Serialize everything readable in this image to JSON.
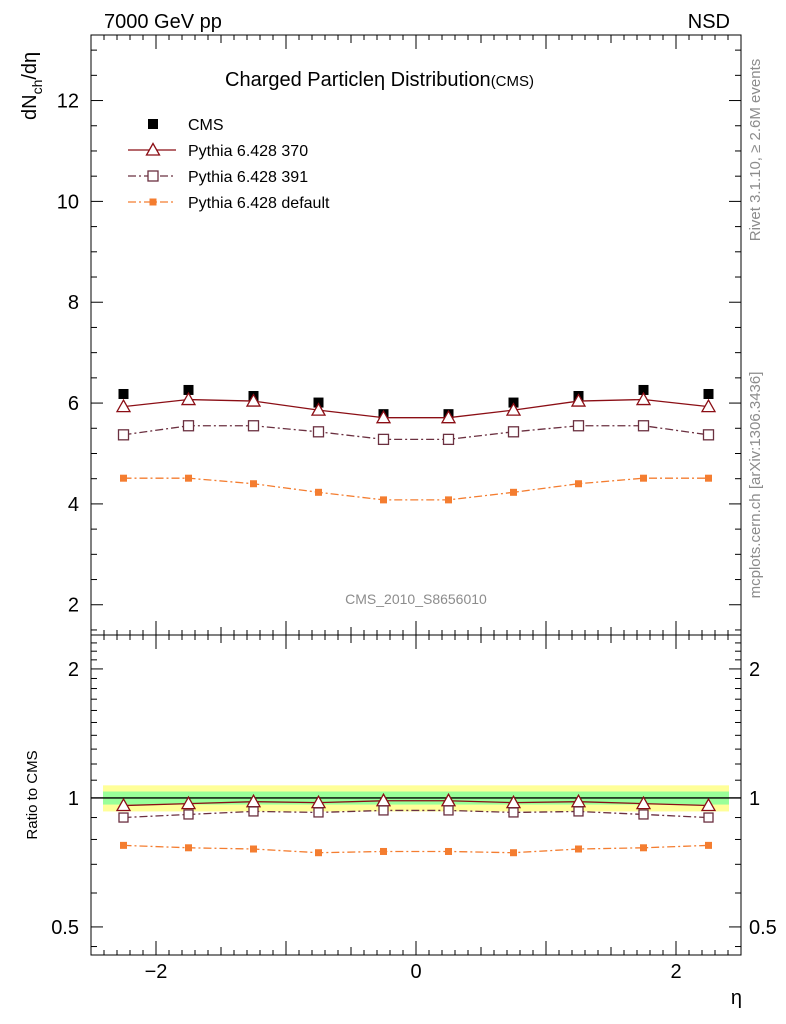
{
  "header": {
    "left": "7000 GeV pp",
    "right": "NSD"
  },
  "side": {
    "rivet": "Rivet 3.1.10, ≥ 2.6M events",
    "mcplots": "mcplots.cern.ch [arXiv:1306.3436]"
  },
  "chart_data": [
    {
      "type": "line",
      "title_main": "Charged Particleη Distribution",
      "title_sub": "(CMS)",
      "ylabel_main": "dN",
      "ylabel_sub": "ch",
      "ylabel_tail": "/dη",
      "analysis_tag": "CMS_2010_S8656010",
      "xlim": [
        -2.5,
        2.5
      ],
      "ylim": [
        1.4,
        13.3
      ],
      "y_ticks": [
        "2",
        "4",
        "6",
        "8",
        "10",
        "12"
      ],
      "y_tick_values": [
        2,
        4,
        6,
        8,
        10,
        12
      ],
      "legend_position": "top-left",
      "x": [
        -2.25,
        -1.75,
        -1.25,
        -0.75,
        -0.25,
        0.25,
        0.75,
        1.25,
        1.75,
        2.25
      ],
      "series": [
        {
          "name": "CMS",
          "style": "data",
          "color": "#000000",
          "values": [
            6.18,
            6.26,
            6.14,
            6.01,
            5.78,
            5.78,
            6.01,
            6.14,
            6.26,
            6.18
          ]
        },
        {
          "name": "Pythia 6.428 370",
          "style": "triangle-solid",
          "color": "#8b0e15",
          "values": [
            5.93,
            6.07,
            6.04,
            5.86,
            5.71,
            5.71,
            5.86,
            6.04,
            6.07,
            5.93
          ]
        },
        {
          "name": "Pythia 6.428 391",
          "style": "square-dashdot",
          "color": "#6b3040",
          "values": [
            5.37,
            5.55,
            5.55,
            5.43,
            5.28,
            5.28,
            5.43,
            5.55,
            5.55,
            5.37
          ]
        },
        {
          "name": "Pythia 6.428 default",
          "style": "filledsquare-dashdot",
          "color": "#f47d30",
          "values": [
            4.51,
            4.51,
            4.4,
            4.23,
            4.08,
            4.08,
            4.23,
            4.4,
            4.51,
            4.51
          ]
        }
      ]
    },
    {
      "type": "line",
      "ylabel": "Ratio to CMS",
      "xlabel": "η",
      "xlim": [
        -2.5,
        2.5
      ],
      "x_ticks": [
        "−2",
        "0",
        "2"
      ],
      "x_tick_values": [
        -2,
        0,
        2
      ],
      "y_scale": "log",
      "ylim": [
        0.43,
        2.4
      ],
      "y_ticks": [
        "0.5",
        "1",
        "2"
      ],
      "y_tick_values": [
        0.5,
        1,
        2
      ],
      "band_colors": {
        "outer": "#ffff99",
        "inner": "#99ff99"
      },
      "x": [
        -2.25,
        -1.75,
        -1.25,
        -0.75,
        -0.25,
        0.25,
        0.75,
        1.25,
        1.75,
        2.25
      ],
      "series": [
        {
          "name": "Pythia 6.428 370",
          "style": "triangle-solid",
          "color": "#8b0e15",
          "values": [
            0.96,
            0.97,
            0.98,
            0.975,
            0.985,
            0.985,
            0.975,
            0.98,
            0.97,
            0.96
          ]
        },
        {
          "name": "Pythia 6.428 391",
          "style": "square-dashdot",
          "color": "#6b3040",
          "values": [
            0.9,
            0.915,
            0.93,
            0.925,
            0.935,
            0.935,
            0.925,
            0.93,
            0.915,
            0.9
          ]
        },
        {
          "name": "Pythia 6.428 default",
          "style": "filledsquare-dashdot",
          "color": "#f47d30",
          "values": [
            0.775,
            0.765,
            0.76,
            0.745,
            0.75,
            0.75,
            0.745,
            0.76,
            0.765,
            0.775
          ]
        }
      ]
    }
  ]
}
